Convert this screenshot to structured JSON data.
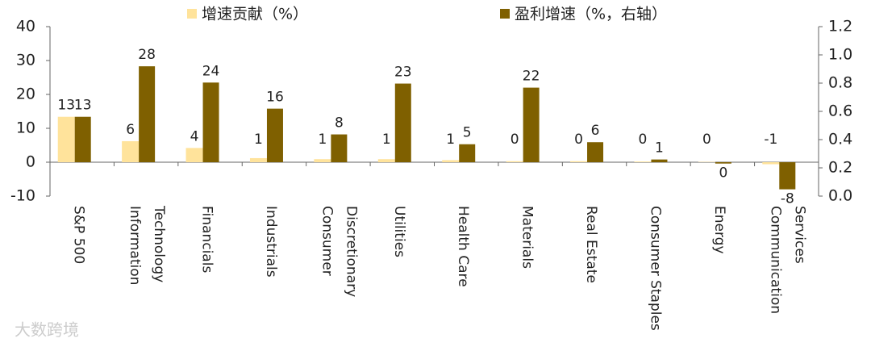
{
  "chart_data": {
    "type": "bar",
    "categories": [
      "S&P 500",
      "Information\nTechnology",
      "Financials",
      "Industrials",
      "Consumer\nDiscretionary",
      "Utilities",
      "Health Care",
      "Materials",
      "Real Estate",
      "Consumer Staples",
      "Energy",
      "Communication\nServices"
    ],
    "series": [
      {
        "name": "增速贡献（%）",
        "color": "#ffe39b",
        "values": [
          13.4,
          6.2,
          4.2,
          1.2,
          0.9,
          0.9,
          0.6,
          0.3,
          0.3,
          0.2,
          0.1,
          -0.6
        ],
        "value_labels": [
          "13",
          "6",
          "4",
          "1",
          "1",
          "1",
          "1",
          "0",
          "0",
          "0",
          "0",
          "-1"
        ]
      },
      {
        "name": "盈利增速（%，右轴）",
        "color": "#7f6000",
        "values": [
          13.4,
          28.3,
          23.5,
          15.8,
          8.2,
          23.2,
          5.3,
          22.0,
          5.9,
          0.8,
          -0.4,
          -8.0
        ],
        "value_labels": [
          "13",
          "28",
          "24",
          "16",
          "8",
          "23",
          "5",
          "22",
          "6",
          "1",
          "0",
          "-8"
        ]
      }
    ],
    "ylim": [
      -10,
      40
    ],
    "yticks": [
      -10,
      0,
      10,
      20,
      30,
      40
    ],
    "y2lim": [
      0,
      1.2
    ],
    "y2ticks": [
      {
        "value": 0,
        "label": "0.0"
      },
      {
        "value": 0.2,
        "label": "0.2"
      },
      {
        "value": 0.4,
        "label": "0.4"
      },
      {
        "value": 0.6,
        "label": "0.6"
      },
      {
        "value": 0.8,
        "label": "0.8"
      },
      {
        "value": 1.0,
        "label": "1.0"
      },
      {
        "value": 1.2,
        "label": "1.2"
      }
    ],
    "legend": "top",
    "grid": false
  },
  "watermark": "大数跨境"
}
